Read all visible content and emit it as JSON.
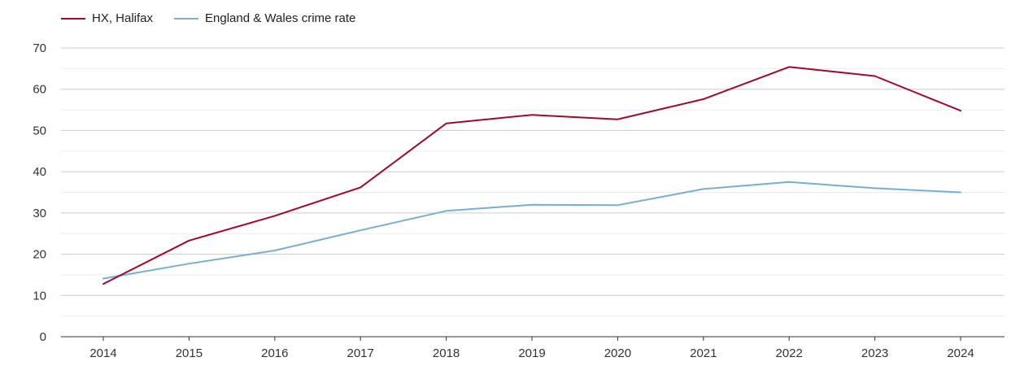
{
  "chart_data": {
    "type": "line",
    "title": "",
    "xlabel": "",
    "ylabel": "",
    "x": [
      2014,
      2015,
      2016,
      2017,
      2018,
      2019,
      2020,
      2021,
      2022,
      2023,
      2024
    ],
    "ylim": [
      0,
      70
    ],
    "yticks": [
      0,
      10,
      20,
      30,
      40,
      50,
      60,
      70
    ],
    "grid": true,
    "legend_position": "top-left",
    "series": [
      {
        "name": "HX, Halifax",
        "color": "#9e0a2e",
        "values": [
          12.8,
          23.3,
          29.3,
          36.2,
          51.7,
          53.8,
          52.7,
          57.6,
          65.4,
          63.2,
          54.8
        ]
      },
      {
        "name": "England & Wales crime rate",
        "color": "#7aaed0",
        "values": [
          14.1,
          17.7,
          20.9,
          25.8,
          30.5,
          32.0,
          31.9,
          35.8,
          37.5,
          36.0,
          35.0
        ]
      }
    ]
  }
}
